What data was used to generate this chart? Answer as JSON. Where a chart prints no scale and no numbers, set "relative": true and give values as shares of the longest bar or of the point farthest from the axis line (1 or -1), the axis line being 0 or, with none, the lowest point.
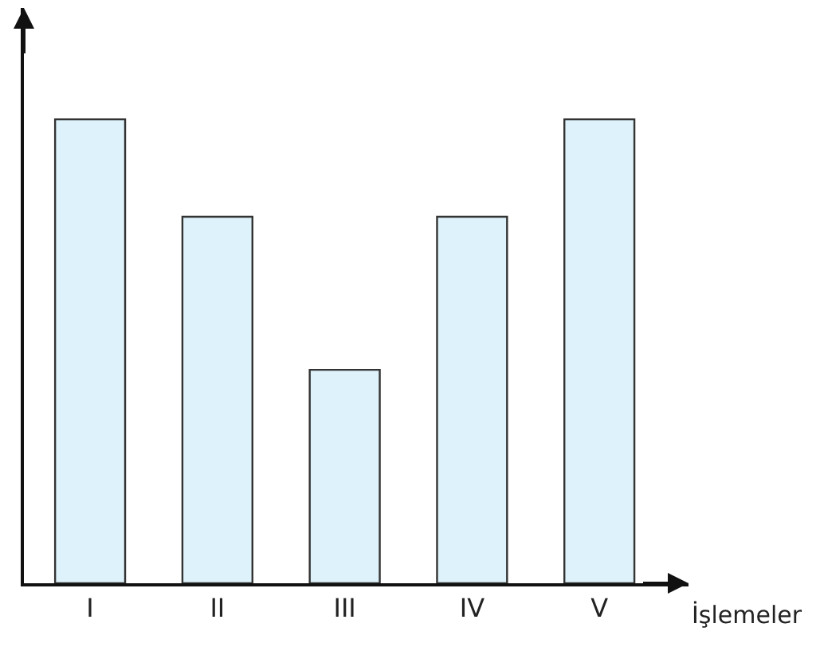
{
  "chart_data": {
    "type": "bar",
    "relative": true,
    "xlabel": "İşlemeler",
    "categories": [
      "I",
      "II",
      "III",
      "IV",
      "V"
    ],
    "values": [
      1,
      0.79,
      0.46,
      0.79,
      1
    ],
    "color": "#ddf2fa"
  }
}
